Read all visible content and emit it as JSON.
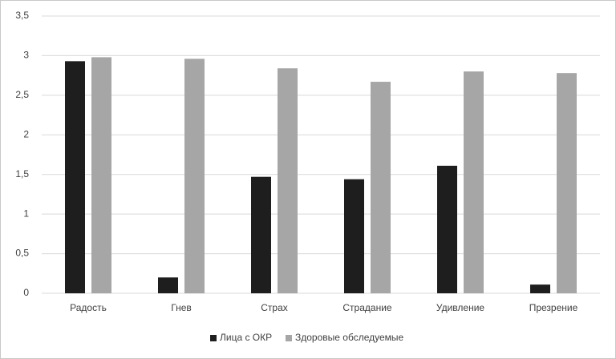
{
  "chart_data": {
    "type": "bar",
    "categories": [
      "Радость",
      "Гнев",
      "Страх",
      "Страдание",
      "Удивление",
      "Презрение"
    ],
    "series": [
      {
        "name": "Лица с ОКР",
        "color": "#1e1e1e",
        "values": [
          2.93,
          0.2,
          1.47,
          1.44,
          1.61,
          0.11
        ]
      },
      {
        "name": "Здоровые обследуемые",
        "color": "#a6a6a6",
        "values": [
          2.98,
          2.96,
          2.84,
          2.67,
          2.8,
          2.78
        ]
      }
    ],
    "ylim": [
      0,
      3.5
    ],
    "yticks": [
      0,
      {
        "value": 0.5,
        "label": "0,5"
      },
      1,
      {
        "value": 1.5,
        "label": "1,5"
      },
      2,
      {
        "value": 2.5,
        "label": "2,5"
      },
      3,
      {
        "value": 3.5,
        "label": "3,5"
      }
    ],
    "grid": true,
    "legend": "bottom"
  }
}
